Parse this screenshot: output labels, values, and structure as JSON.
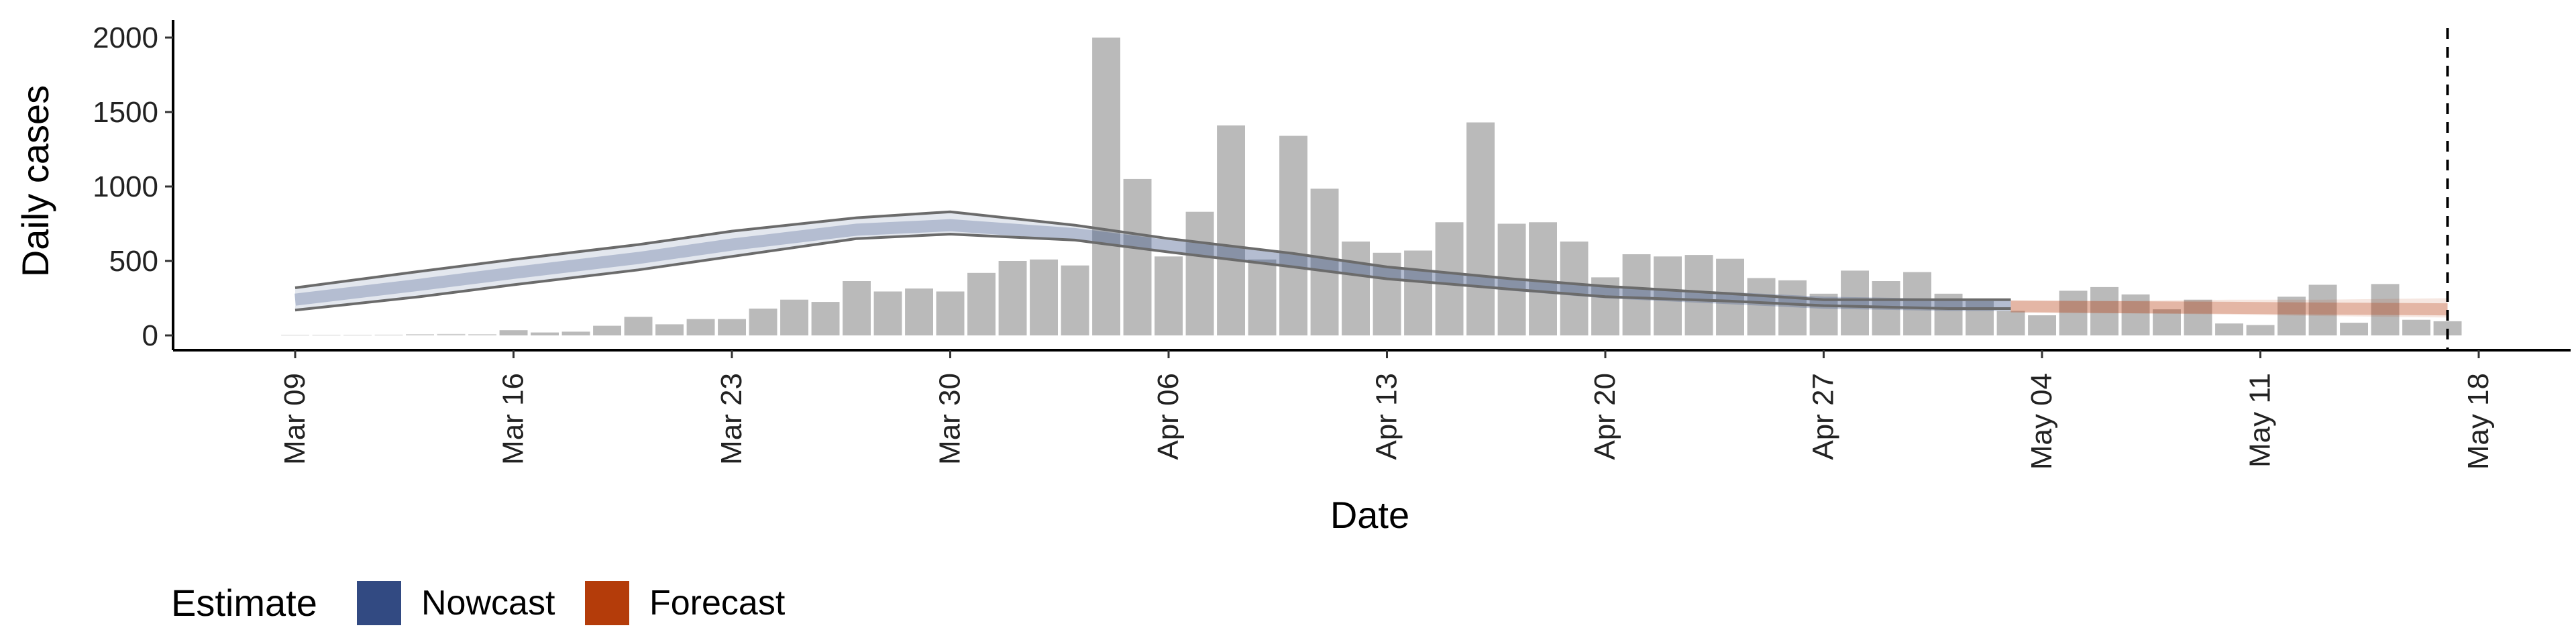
{
  "chart_data": {
    "type": "bar",
    "xlabel": "Date",
    "ylabel": "Daily cases",
    "ylim": [
      0,
      2100
    ],
    "yticks": [
      0,
      500,
      1000,
      1500,
      2000
    ],
    "x_start": "2020-03-09",
    "x_end": "2020-05-18",
    "xticks": [
      "Mar 09",
      "Mar 16",
      "Mar 23",
      "Mar 30",
      "Apr 06",
      "Apr 13",
      "Apr 20",
      "Apr 27",
      "May 04",
      "May 11",
      "May 18"
    ],
    "bar_dates": [
      "2020-03-09",
      "2020-03-10",
      "2020-03-11",
      "2020-03-12",
      "2020-03-13",
      "2020-03-14",
      "2020-03-15",
      "2020-03-16",
      "2020-03-17",
      "2020-03-18",
      "2020-03-19",
      "2020-03-20",
      "2020-03-21",
      "2020-03-22",
      "2020-03-23",
      "2020-03-24",
      "2020-03-25",
      "2020-03-26",
      "2020-03-27",
      "2020-03-28",
      "2020-03-29",
      "2020-03-30",
      "2020-03-31",
      "2020-04-01",
      "2020-04-02",
      "2020-04-03",
      "2020-04-04",
      "2020-04-05",
      "2020-04-06",
      "2020-04-07",
      "2020-04-08",
      "2020-04-09",
      "2020-04-10",
      "2020-04-11",
      "2020-04-12",
      "2020-04-13",
      "2020-04-14",
      "2020-04-15",
      "2020-04-16",
      "2020-04-17",
      "2020-04-18",
      "2020-04-19",
      "2020-04-20",
      "2020-04-21",
      "2020-04-22",
      "2020-04-23",
      "2020-04-24",
      "2020-04-25",
      "2020-04-26",
      "2020-04-27",
      "2020-04-28",
      "2020-04-29",
      "2020-04-30",
      "2020-05-01",
      "2020-05-02",
      "2020-05-03",
      "2020-05-04",
      "2020-05-05",
      "2020-05-06",
      "2020-05-07",
      "2020-05-08",
      "2020-05-09",
      "2020-05-10",
      "2020-05-11",
      "2020-05-12",
      "2020-05-13",
      "2020-05-14",
      "2020-05-15",
      "2020-05-16",
      "2020-05-17"
    ],
    "bar_values": [
      2,
      2,
      0,
      5,
      8,
      10,
      8,
      35,
      20,
      25,
      65,
      125,
      75,
      110,
      110,
      180,
      240,
      225,
      365,
      295,
      315,
      295,
      420,
      500,
      510,
      470,
      2000,
      1050,
      530,
      830,
      1410,
      510,
      1340,
      985,
      630,
      555,
      570,
      760,
      1430,
      750,
      760,
      630,
      390,
      545,
      530,
      540,
      515,
      385,
      370,
      280,
      435,
      365,
      425,
      280,
      230,
      165,
      135,
      300,
      325,
      275,
      175,
      240,
      80,
      70,
      260,
      340,
      85,
      345,
      105,
      95
    ],
    "vline_date": "2020-05-17",
    "nowcast": {
      "dates": [
        "2020-03-09",
        "2020-03-13",
        "2020-03-16",
        "2020-03-20",
        "2020-03-23",
        "2020-03-27",
        "2020-03-30",
        "2020-04-03",
        "2020-04-06",
        "2020-04-10",
        "2020-04-13",
        "2020-04-17",
        "2020-04-20",
        "2020-04-24",
        "2020-04-27",
        "2020-05-01",
        "2020-05-03"
      ],
      "lower": [
        170,
        260,
        340,
        440,
        530,
        650,
        680,
        640,
        560,
        460,
        380,
        310,
        260,
        230,
        200,
        180,
        180
      ],
      "upper": [
        320,
        430,
        510,
        610,
        700,
        790,
        830,
        740,
        650,
        550,
        460,
        380,
        330,
        280,
        240,
        240,
        240
      ],
      "median": [
        240,
        340,
        420,
        520,
        610,
        710,
        740,
        680,
        600,
        500,
        420,
        340,
        290,
        250,
        220,
        205,
        205
      ],
      "color": "#3b5488"
    },
    "forecast": {
      "dates": [
        "2020-05-03",
        "2020-05-06",
        "2020-05-10",
        "2020-05-13",
        "2020-05-17"
      ],
      "lower": [
        160,
        150,
        140,
        130,
        120
      ],
      "upper": [
        230,
        230,
        240,
        240,
        250
      ],
      "median": [
        195,
        190,
        185,
        180,
        175
      ],
      "color": "#b83a0a"
    },
    "legend": {
      "title": "Estimate",
      "items": [
        {
          "label": "Nowcast",
          "color": "#324a82"
        },
        {
          "label": "Forecast",
          "color": "#b43c0a"
        }
      ]
    },
    "bar_color": "#bababa"
  }
}
